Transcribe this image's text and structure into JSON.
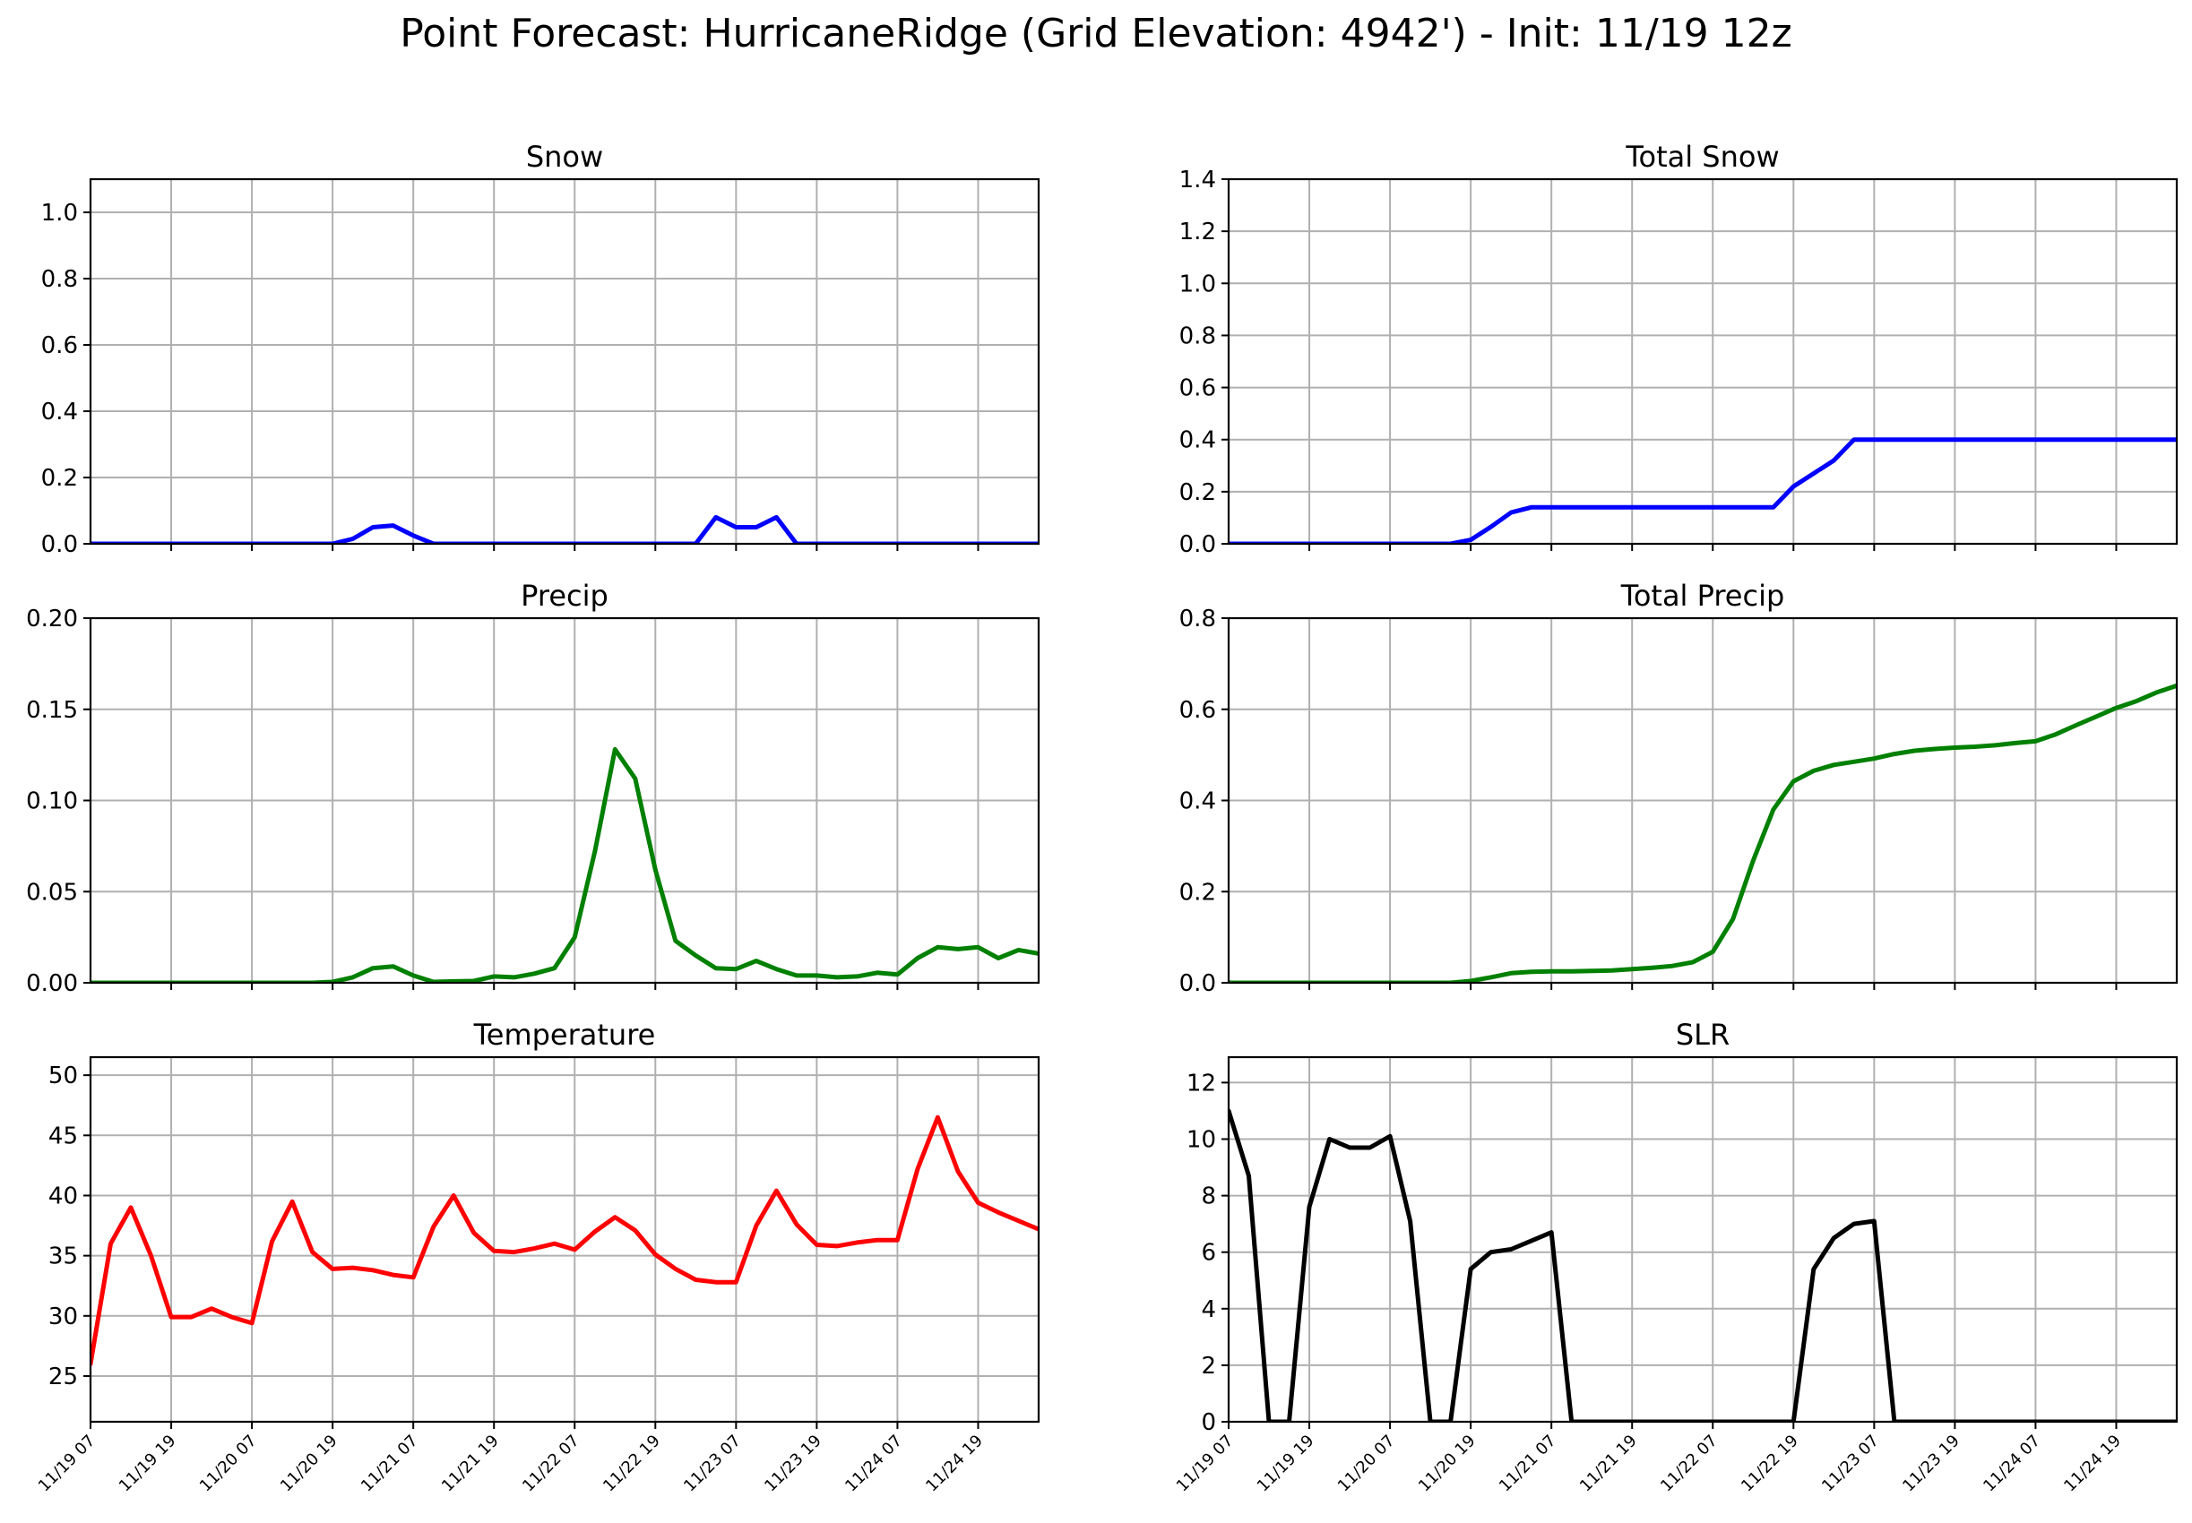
{
  "figure_title": "Point Forecast: HurricaneRidge (Grid Elevation: 4942') - Init: 11/19 12z",
  "chart_data": [
    {
      "type": "line",
      "title": "Snow",
      "color": "#0000ff",
      "ylim": [
        0,
        1.1
      ],
      "yticks": [
        0.0,
        0.2,
        0.4,
        0.6,
        0.8,
        1.0
      ],
      "ytick_decimals": 1,
      "grid": true,
      "xlim": [
        0,
        47
      ],
      "x_tick_positions": [
        4,
        8,
        12,
        16,
        20,
        24,
        28,
        32,
        36,
        40,
        44
      ],
      "x_tick_labels": [],
      "values": [
        0,
        0,
        0,
        0,
        0,
        0,
        0,
        0,
        0,
        0,
        0,
        0,
        0,
        0.015,
        0.05,
        0.055,
        0.025,
        0,
        0,
        0,
        0,
        0,
        0,
        0,
        0,
        0,
        0,
        0,
        0,
        0,
        0,
        0.08,
        0.05,
        0.05,
        0.08,
        0,
        0,
        0,
        0,
        0,
        0,
        0,
        0,
        0,
        0,
        0,
        0,
        0
      ]
    },
    {
      "type": "line",
      "title": "Total Snow",
      "color": "#0000ff",
      "ylim": [
        0,
        1.4
      ],
      "yticks": [
        0.0,
        0.2,
        0.4,
        0.6,
        0.8,
        1.0,
        1.2,
        1.4
      ],
      "ytick_decimals": 1,
      "grid": true,
      "xlim": [
        0,
        47
      ],
      "x_tick_positions": [
        4,
        8,
        12,
        16,
        20,
        24,
        28,
        32,
        36,
        40,
        44
      ],
      "x_tick_labels": [],
      "values": [
        0,
        0,
        0,
        0,
        0,
        0,
        0,
        0,
        0,
        0,
        0,
        0,
        0.015,
        0.065,
        0.12,
        0.14,
        0.14,
        0.14,
        0.14,
        0.14,
        0.14,
        0.14,
        0.14,
        0.14,
        0.14,
        0.14,
        0.14,
        0.14,
        0.22,
        0.27,
        0.32,
        0.4,
        0.4,
        0.4,
        0.4,
        0.4,
        0.4,
        0.4,
        0.4,
        0.4,
        0.4,
        0.4,
        0.4,
        0.4,
        0.4,
        0.4,
        0.4,
        0.4
      ]
    },
    {
      "type": "line",
      "title": "Precip",
      "color": "#008000",
      "ylim": [
        0,
        0.2
      ],
      "yticks": [
        0.0,
        0.05,
        0.1,
        0.15,
        0.2
      ],
      "ytick_decimals": 2,
      "grid": true,
      "xlim": [
        0,
        47
      ],
      "x_tick_positions": [
        4,
        8,
        12,
        16,
        20,
        24,
        28,
        32,
        36,
        40,
        44
      ],
      "x_tick_labels": [],
      "values": [
        0,
        0,
        0,
        0,
        0,
        0,
        0,
        0,
        0,
        0,
        0,
        0,
        0.0005,
        0.003,
        0.008,
        0.009,
        0.004,
        0.0005,
        0.0008,
        0.001,
        0.0035,
        0.003,
        0.005,
        0.008,
        0.025,
        0.072,
        0.128,
        0.112,
        0.062,
        0.023,
        0.015,
        0.008,
        0.0075,
        0.012,
        0.0075,
        0.004,
        0.004,
        0.003,
        0.0035,
        0.0055,
        0.0045,
        0.0135,
        0.0195,
        0.0185,
        0.0195,
        0.0135,
        0.018,
        0.016,
        0.023
      ]
    },
    {
      "type": "line",
      "title": "Total Precip",
      "color": "#008000",
      "ylim": [
        0,
        0.8
      ],
      "yticks": [
        0.0,
        0.2,
        0.4,
        0.6,
        0.8
      ],
      "ytick_decimals": 1,
      "grid": true,
      "xlim": [
        0,
        47
      ],
      "x_tick_positions": [
        4,
        8,
        12,
        16,
        20,
        24,
        28,
        32,
        36,
        40,
        44
      ],
      "x_tick_labels": [],
      "values": [
        0,
        0,
        0,
        0,
        0,
        0,
        0,
        0,
        0,
        0,
        0,
        0,
        0.004,
        0.012,
        0.021,
        0.024,
        0.025,
        0.025,
        0.026,
        0.027,
        0.03,
        0.033,
        0.037,
        0.045,
        0.068,
        0.14,
        0.268,
        0.38,
        0.442,
        0.465,
        0.478,
        0.485,
        0.492,
        0.502,
        0.509,
        0.513,
        0.516,
        0.518,
        0.521,
        0.526,
        0.53,
        0.545,
        0.565,
        0.584,
        0.603,
        0.618,
        0.637,
        0.652,
        0.672
      ]
    },
    {
      "type": "line",
      "title": "Temperature",
      "color": "#ff0000",
      "ylim": [
        21.2,
        51.5
      ],
      "yticks": [
        25,
        30,
        35,
        40,
        45,
        50
      ],
      "ytick_decimals": 0,
      "grid": true,
      "xlim": [
        0,
        47
      ],
      "x_tick_positions": [
        0,
        4,
        8,
        12,
        16,
        20,
        24,
        28,
        32,
        36,
        40,
        44
      ],
      "x_tick_labels": [
        "11/19 07",
        "11/19 19",
        "11/20 07",
        "11/20 19",
        "11/21 07",
        "11/21 19",
        "11/22 07",
        "11/22 19",
        "11/23 07",
        "11/23 19",
        "11/24 07",
        "11/24 19"
      ],
      "values": [
        26,
        36,
        39,
        35,
        29.9,
        29.9,
        30.6,
        29.9,
        29.4,
        36.2,
        39.5,
        35.3,
        33.9,
        34,
        33.8,
        33.4,
        33.2,
        37.4,
        40,
        36.9,
        35.4,
        35.3,
        35.6,
        36,
        35.5,
        37,
        38.2,
        37.1,
        35.1,
        33.9,
        33,
        32.8,
        32.8,
        37.5,
        40.4,
        37.6,
        35.9,
        35.8,
        36.1,
        36.3,
        36.3,
        42.2,
        46.5,
        42,
        39.4,
        38.6,
        37.9,
        37.2
      ]
    },
    {
      "type": "line",
      "title": "SLR",
      "color": "#000000",
      "ylim": [
        0,
        12.9
      ],
      "yticks": [
        0,
        2,
        4,
        6,
        8,
        10,
        12
      ],
      "ytick_decimals": 0,
      "grid": true,
      "xlim": [
        0,
        47
      ],
      "x_tick_positions": [
        0,
        4,
        8,
        12,
        16,
        20,
        24,
        28,
        32,
        36,
        40,
        44
      ],
      "x_tick_labels": [
        "11/19 07",
        "11/19 19",
        "11/20 07",
        "11/20 19",
        "11/21 07",
        "11/21 19",
        "11/22 07",
        "11/22 19",
        "11/23 07",
        "11/23 19",
        "11/24 07",
        "11/24 19"
      ],
      "values": [
        11,
        8.7,
        0,
        0,
        7.6,
        10,
        9.7,
        9.7,
        10.1,
        7.1,
        0,
        0,
        5.4,
        6,
        6.1,
        6.4,
        6.7,
        0,
        0,
        0,
        0,
        0,
        0,
        0,
        0,
        0,
        0,
        0,
        0,
        5.4,
        6.5,
        7,
        7.1,
        0,
        0,
        0,
        0,
        0,
        0,
        0,
        0,
        0,
        0,
        0,
        0,
        0,
        0,
        0
      ]
    }
  ]
}
